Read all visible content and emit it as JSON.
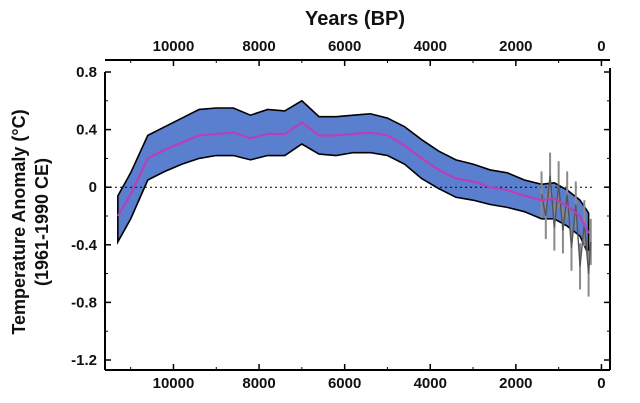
{
  "chart_data": {
    "type": "area",
    "title": "Years (BP)",
    "xlabel_bottom": "",
    "ylabel_line1": "Temperature Anomaly (°C)",
    "ylabel_line2": "(1961-1990 CE)",
    "x_top_label": "Years (BP)",
    "xlim": [
      11600,
      -200
    ],
    "ylim": [
      -1.2,
      0.8
    ],
    "x_ticks": [
      10000,
      8000,
      6000,
      4000,
      2000,
      0
    ],
    "x_tick_labels": [
      "10000",
      "8000",
      "6000",
      "4000",
      "2000",
      "0"
    ],
    "y_ticks": [
      0.8,
      0.4,
      0,
      -0.4,
      -0.8,
      -1.2
    ],
    "y_tick_labels": [
      "0.8",
      "0.4",
      "0",
      "-0.4",
      "-0.8",
      "-1.2"
    ],
    "zero_line": "dotted",
    "colors": {
      "band": "#5b7fcf",
      "mean_line": "#b93fb9",
      "high_res_band": "#8a8a8a",
      "high_res_line": "#555555",
      "axis": "#000000"
    },
    "series": [
      {
        "role": "mean",
        "x": [
          11300,
          11000,
          10600,
          10200,
          9800,
          9400,
          9000,
          8600,
          8200,
          7800,
          7400,
          7000,
          6600,
          6200,
          5800,
          5400,
          5000,
          4600,
          4200,
          3800,
          3400,
          3000,
          2600,
          2200,
          1800,
          1400,
          1100,
          800,
          500,
          300
        ],
        "y": [
          -0.2,
          -0.05,
          0.2,
          0.26,
          0.31,
          0.36,
          0.37,
          0.38,
          0.34,
          0.37,
          0.37,
          0.45,
          0.36,
          0.36,
          0.37,
          0.38,
          0.36,
          0.29,
          0.2,
          0.12,
          0.06,
          0.04,
          0.0,
          -0.02,
          -0.06,
          -0.09,
          -0.08,
          -0.13,
          -0.2,
          -0.32
        ]
      },
      {
        "role": "upper_bound",
        "x": [
          11300,
          11000,
          10600,
          10200,
          9800,
          9400,
          9000,
          8600,
          8200,
          7800,
          7400,
          7000,
          6600,
          6200,
          5800,
          5400,
          5000,
          4600,
          4200,
          3800,
          3400,
          3000,
          2600,
          2200,
          1800,
          1400,
          1100,
          800,
          500,
          300
        ],
        "y": [
          -0.06,
          0.1,
          0.36,
          0.42,
          0.48,
          0.54,
          0.55,
          0.55,
          0.5,
          0.54,
          0.53,
          0.6,
          0.49,
          0.49,
          0.5,
          0.51,
          0.48,
          0.42,
          0.33,
          0.25,
          0.19,
          0.16,
          0.12,
          0.1,
          0.05,
          0.02,
          0.03,
          -0.02,
          -0.09,
          -0.18
        ]
      },
      {
        "role": "lower_bound",
        "x": [
          11300,
          11000,
          10600,
          10200,
          9800,
          9400,
          9000,
          8600,
          8200,
          7800,
          7400,
          7000,
          6600,
          6200,
          5800,
          5400,
          5000,
          4600,
          4200,
          3800,
          3400,
          3000,
          2600,
          2200,
          1800,
          1400,
          1100,
          800,
          500,
          300
        ],
        "y": [
          -0.38,
          -0.22,
          0.05,
          0.11,
          0.16,
          0.2,
          0.22,
          0.22,
          0.19,
          0.22,
          0.22,
          0.3,
          0.23,
          0.22,
          0.24,
          0.24,
          0.22,
          0.16,
          0.06,
          -0.01,
          -0.07,
          -0.09,
          -0.12,
          -0.14,
          -0.17,
          -0.22,
          -0.22,
          -0.27,
          -0.34,
          -0.47
        ]
      },
      {
        "role": "high_res_variability",
        "x": [
          1400,
          1300,
          1200,
          1100,
          1000,
          900,
          800,
          700,
          600,
          500,
          400,
          300,
          250
        ],
        "y": [
          -0.05,
          -0.2,
          0.08,
          -0.28,
          0.02,
          -0.3,
          -0.05,
          -0.42,
          -0.12,
          -0.55,
          -0.25,
          -0.6,
          -0.38
        ]
      }
    ]
  }
}
